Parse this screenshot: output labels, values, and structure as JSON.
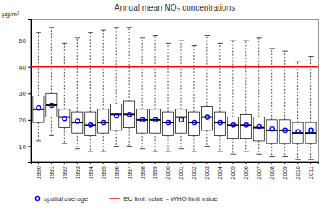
{
  "chart_data": {
    "type": "box",
    "title": "Annual mean NO₂ concentrations",
    "y_label": "µg/m³",
    "categories": [
      "1990",
      "1991",
      "1992",
      "1993",
      "1994",
      "1995",
      "1996",
      "1997",
      "1998",
      "1999",
      "2000",
      "2001",
      "2002",
      "2003",
      "2004",
      "2005",
      "2006",
      "2007",
      "2008",
      "2009",
      "2010",
      "2011"
    ],
    "boxes": {
      "min": [
        12,
        14,
        11,
        9,
        8,
        8,
        10,
        10,
        9,
        8,
        8,
        9,
        8,
        10,
        8,
        7,
        8,
        7,
        6,
        6,
        5,
        5
      ],
      "q1": [
        19,
        21,
        17,
        15,
        14,
        15,
        16,
        17,
        15,
        15,
        14,
        15,
        14,
        16,
        14,
        13,
        13,
        12,
        11,
        11,
        11,
        11
      ],
      "median": [
        24,
        25.5,
        21,
        19,
        18,
        19,
        22,
        22,
        20,
        20,
        19,
        21,
        19,
        21,
        19,
        18,
        18,
        17,
        16,
        16,
        15,
        15
      ],
      "q3": [
        29,
        30,
        24,
        23,
        23,
        24,
        26,
        27,
        24,
        24,
        23,
        24,
        23,
        25,
        23,
        21,
        22,
        21,
        20,
        20,
        19,
        19
      ],
      "max": [
        53,
        55,
        49,
        51,
        53,
        54,
        55,
        55,
        51,
        52,
        49,
        50,
        48,
        52,
        49,
        50,
        50,
        51,
        47,
        46,
        42,
        44
      ]
    },
    "series": [
      {
        "name": "spatial average",
        "color": "#0000ff",
        "marker": "circle",
        "values": [
          24.5,
          25.5,
          20.5,
          19.5,
          18,
          19,
          21.5,
          22,
          20,
          20,
          19,
          20,
          19,
          21,
          19,
          18,
          18,
          17.5,
          16.5,
          16,
          15.5,
          16
        ]
      }
    ],
    "reference_lines": [
      {
        "name": "EU limit value = WHO limit value",
        "value": 40,
        "color": "#ff0000"
      }
    ],
    "ylim": [
      4,
      58
    ],
    "yticks": [
      10,
      20,
      30,
      40,
      50
    ],
    "legend": "bottom"
  }
}
